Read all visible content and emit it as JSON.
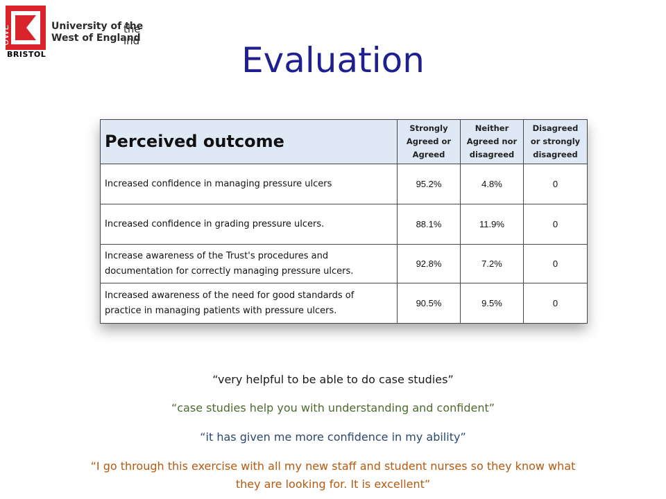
{
  "logo": {
    "mark_text": "UWE",
    "line1": "University of the",
    "line2": "West of England",
    "the": "the",
    "ind": "ind",
    "city": "BRISTOL",
    "brand_color": "#d8232a"
  },
  "slide": {
    "title": "Evaluation"
  },
  "table": {
    "headers": [
      "Perceived outcome",
      "Strongly Agreed or Agreed",
      "Neither Agreed nor disagreed",
      "Disagreed or strongly disagreed"
    ],
    "rows": [
      {
        "statement": "Increased confidence in managing pressure ulcers",
        "agreed": "95.2%",
        "neither": "4.8%",
        "disagreed": "0"
      },
      {
        "statement": "Increased confidence in grading pressure ulcers.",
        "agreed": "88.1%",
        "neither": "11.9%",
        "disagreed": "0"
      },
      {
        "statement": "Increase awareness of the Trust's procedures and documentation for correctly managing pressure ulcers.",
        "agreed": "92.8%",
        "neither": "7.2%",
        "disagreed": "0"
      },
      {
        "statement": "Increased awareness of the need for good standards of practice in managing patients with pressure ulcers.",
        "agreed": "90.5%",
        "neither": "9.5%",
        "disagreed": "0"
      }
    ]
  },
  "quotes": [
    "“very helpful to be able to do case studies”",
    "“case studies help you with understanding and confident”",
    "“it has given me more confidence in my ability”",
    "“I go through this exercise with all my new staff and student nurses so they know what they are looking for. It is excellent”"
  ]
}
